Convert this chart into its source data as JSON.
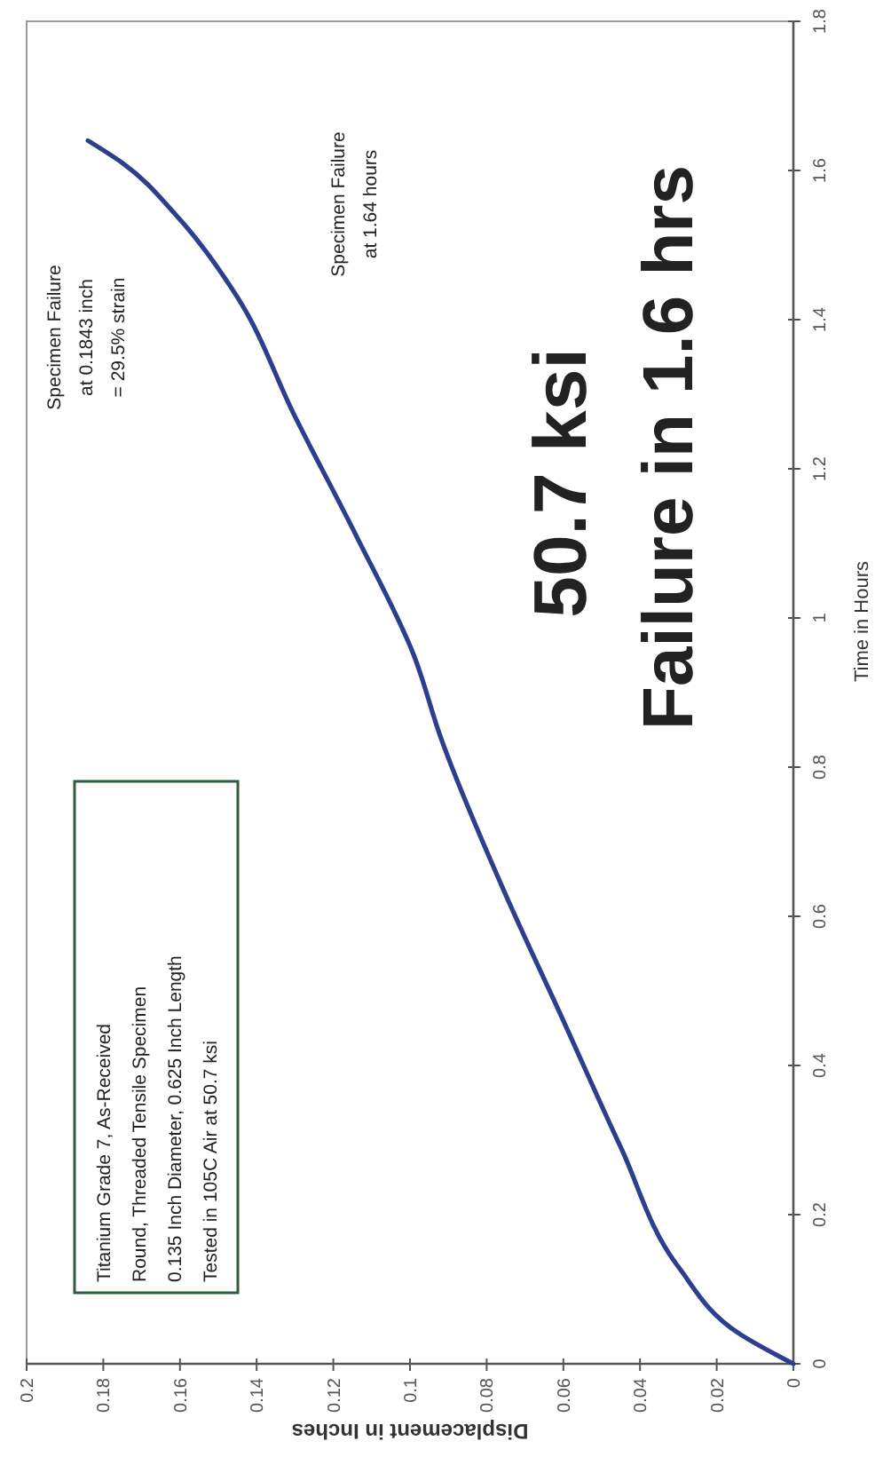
{
  "chart_data": {
    "type": "line",
    "xlabel": "Displacement in Inches",
    "ylabel": "Time in Hours",
    "xlim": [
      0.2,
      0
    ],
    "ylim": [
      0,
      1.8
    ],
    "xticks": [
      0.2,
      0.18,
      0.16,
      0.14,
      0.12,
      0.1,
      0.08,
      0.06,
      0.04,
      0.02,
      0
    ],
    "yticks": [
      0,
      0.2,
      0.4,
      0.6,
      0.8,
      1,
      1.2,
      1.4,
      1.6,
      1.8
    ],
    "grid": false,
    "marker": "none",
    "line_style": "solid",
    "series": [
      {
        "color": "#2b3f8e",
        "x": [
          0,
          0.014,
          0.03,
          0.045,
          0.06,
          0.076,
          0.092,
          0.099,
          0.114,
          0.13,
          0.145,
          0.161,
          0.175,
          0.184
        ],
        "values": [
          0,
          0.04,
          0.13,
          0.29,
          0.46,
          0.64,
          0.84,
          0.95,
          1.11,
          1.27,
          1.43,
          1.54,
          1.61,
          1.64
        ]
      }
    ],
    "annotations": [
      "Specimen Failure\nat 0.1843 inch\n= 29.5% strain",
      "Specimen Failure\nat 1.64 hours",
      "50.7 ksi",
      "Failure in 1.6 hrs",
      "Titanium Grade 7, As-Received\nRound, Threaded Tensile Specimen\n0.135 Inch Diameter, 0.625 Inch Length\nTested in 105C Air at 50.7 ksi"
    ]
  }
}
